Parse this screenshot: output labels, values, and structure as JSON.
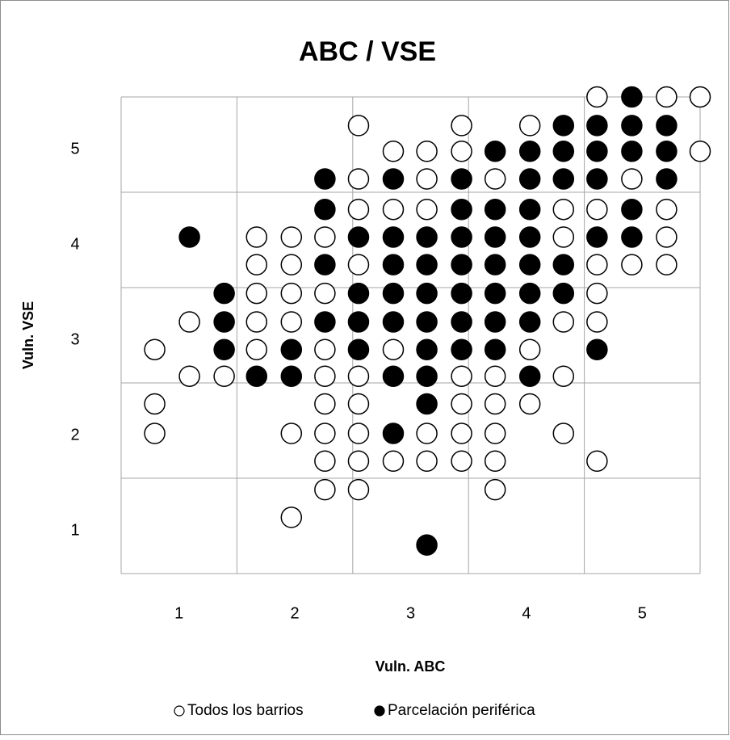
{
  "chart_data": {
    "type": "scatter",
    "title": "ABC / VSE",
    "xlabel": "Vuln. ABC",
    "ylabel": "Vuln. VSE",
    "xlim": [
      0.5,
      5.5
    ],
    "ylim": [
      0.5,
      5.5
    ],
    "xticks": [
      1,
      2,
      3,
      4,
      5
    ],
    "yticks": [
      1,
      2,
      3,
      4,
      5
    ],
    "xgrid": [
      0.5,
      1.5,
      2.5,
      3.5,
      4.5,
      5.5
    ],
    "ygrid": [
      0.5,
      1.5,
      2.5,
      3.5,
      4.5,
      5.5
    ],
    "grid": true,
    "legend": "bottom",
    "series": [
      {
        "name": "Todos los barrios",
        "color": "#000000",
        "fill": "#ffffff",
        "x": [
          4.61,
          5.21,
          5.5,
          2.55,
          3.44,
          4.03,
          2.85,
          3.14,
          3.44,
          5.5,
          2.55,
          3.14,
          3.73,
          4.91,
          2.55,
          2.85,
          3.14,
          4.32,
          4.61,
          5.21,
          1.67,
          1.97,
          2.26,
          4.32,
          5.21,
          1.67,
          1.97,
          2.55,
          4.61,
          4.91,
          5.21,
          1.67,
          1.97,
          2.26,
          4.61,
          1.09,
          1.67,
          1.97,
          4.32,
          4.61,
          0.79,
          1.67,
          2.26,
          2.85,
          4.03,
          1.09,
          1.39,
          2.26,
          2.55,
          3.44,
          3.73,
          4.32,
          0.79,
          2.26,
          2.55,
          3.44,
          3.73,
          4.03,
          0.79,
          1.97,
          2.26,
          2.55,
          3.14,
          3.44,
          3.73,
          4.32,
          2.26,
          2.55,
          2.85,
          3.14,
          3.44,
          3.73,
          4.61,
          2.26,
          2.55,
          3.73,
          1.97
        ],
        "y": [
          5.5,
          5.5,
          5.5,
          5.2,
          5.2,
          5.2,
          4.93,
          4.93,
          4.93,
          4.93,
          4.64,
          4.64,
          4.64,
          4.64,
          4.32,
          4.32,
          4.32,
          4.32,
          4.32,
          4.32,
          4.03,
          4.03,
          4.03,
          4.03,
          4.03,
          3.74,
          3.74,
          3.74,
          3.74,
          3.74,
          3.74,
          3.44,
          3.44,
          3.44,
          3.44,
          3.14,
          3.14,
          3.14,
          3.14,
          3.14,
          2.85,
          2.85,
          2.85,
          2.85,
          2.85,
          2.57,
          2.57,
          2.57,
          2.57,
          2.57,
          2.57,
          2.57,
          2.28,
          2.28,
          2.28,
          2.28,
          2.28,
          2.28,
          1.97,
          1.97,
          1.97,
          1.97,
          1.97,
          1.97,
          1.97,
          1.97,
          1.68,
          1.68,
          1.68,
          1.68,
          1.68,
          1.68,
          1.68,
          1.38,
          1.38,
          1.38,
          1.09
        ]
      },
      {
        "name": "Parcelación periférica",
        "color": "#000000",
        "fill": "#000000",
        "x": [
          4.91,
          4.32,
          4.61,
          4.91,
          5.21,
          3.73,
          4.03,
          4.32,
          4.61,
          4.91,
          5.21,
          2.26,
          2.85,
          3.44,
          4.03,
          4.32,
          4.61,
          5.21,
          2.26,
          3.44,
          3.73,
          4.03,
          4.91,
          1.09,
          2.55,
          2.85,
          3.14,
          3.44,
          3.73,
          4.03,
          4.61,
          4.91,
          2.26,
          2.85,
          3.14,
          3.44,
          3.73,
          4.03,
          4.32,
          1.39,
          2.55,
          2.85,
          3.14,
          3.44,
          3.73,
          4.03,
          4.32,
          1.39,
          2.26,
          2.55,
          2.85,
          3.14,
          3.44,
          3.73,
          4.03,
          1.39,
          1.97,
          2.55,
          3.14,
          3.44,
          3.73,
          4.61,
          1.67,
          1.97,
          2.85,
          3.14,
          4.03,
          3.14,
          2.85,
          3.14
        ],
        "y": [
          5.5,
          5.2,
          5.2,
          5.2,
          5.2,
          4.93,
          4.93,
          4.93,
          4.93,
          4.93,
          4.93,
          4.64,
          4.64,
          4.64,
          4.64,
          4.64,
          4.64,
          4.64,
          4.32,
          4.32,
          4.32,
          4.32,
          4.32,
          4.03,
          4.03,
          4.03,
          4.03,
          4.03,
          4.03,
          4.03,
          4.03,
          4.03,
          3.74,
          3.74,
          3.74,
          3.74,
          3.74,
          3.74,
          3.74,
          3.44,
          3.44,
          3.44,
          3.44,
          3.44,
          3.44,
          3.44,
          3.44,
          3.14,
          3.14,
          3.14,
          3.14,
          3.14,
          3.14,
          3.14,
          3.14,
          2.85,
          2.85,
          2.85,
          2.85,
          2.85,
          2.85,
          2.85,
          2.57,
          2.57,
          2.57,
          2.57,
          2.57,
          2.28,
          1.97,
          0.8
        ]
      }
    ]
  }
}
